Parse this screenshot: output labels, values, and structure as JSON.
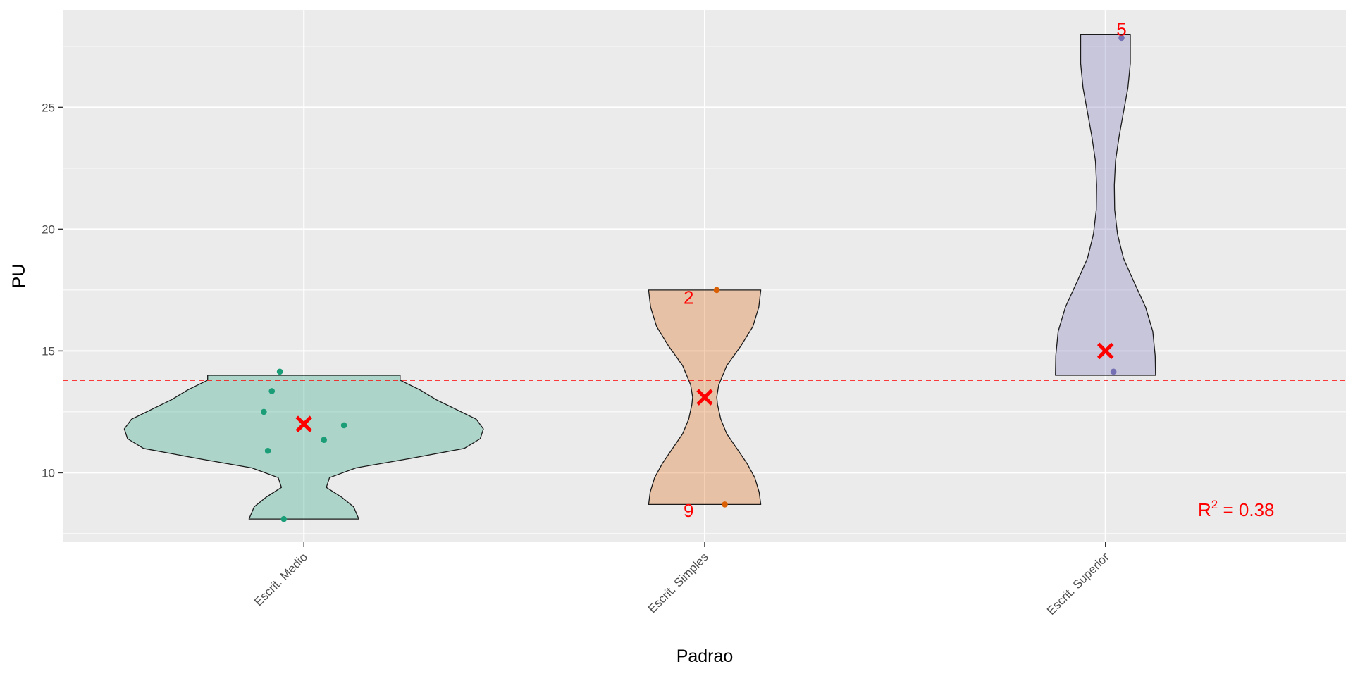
{
  "chart_data": {
    "type": "violin",
    "xlabel": "Padrao",
    "ylabel": "PU",
    "ylim": [
      7.15,
      29.0
    ],
    "yticks": [
      10,
      15,
      20,
      25
    ],
    "grid": true,
    "reference_line": {
      "y": 13.8,
      "color": "#ff0000",
      "style": "dashed"
    },
    "r2": {
      "prefix": "R",
      "sup": "2",
      "text": " = 0.38"
    },
    "mean_marker": {
      "symbol": "x",
      "color": "#ff0000"
    },
    "categories": [
      "Escrit. Medio",
      "Escrit. Simples",
      "Escrit. Superior"
    ],
    "groups": [
      {
        "category": "Escrit. Medio",
        "fill": "#1b9e77",
        "point_color": "#1b9e77",
        "ymin": 8.1,
        "ymax": 14.0,
        "mean": 12.0,
        "points": [
          {
            "dx": -0.05,
            "y": 8.1
          },
          {
            "dx": -0.09,
            "y": 10.9
          },
          {
            "dx": 0.05,
            "y": 11.35
          },
          {
            "dx": 0.1,
            "y": 11.95
          },
          {
            "dx": -0.1,
            "y": 12.5
          },
          {
            "dx": -0.08,
            "y": 13.35
          },
          {
            "dx": -0.06,
            "y": 14.15
          }
        ],
        "profile": [
          [
            8.1,
            0.137
          ],
          [
            8.6,
            0.124
          ],
          [
            9.0,
            0.094
          ],
          [
            9.4,
            0.056
          ],
          [
            9.8,
            0.064
          ],
          [
            10.2,
            0.13
          ],
          [
            10.6,
            0.27
          ],
          [
            11.0,
            0.4
          ],
          [
            11.4,
            0.44
          ],
          [
            11.8,
            0.448
          ],
          [
            12.2,
            0.43
          ],
          [
            12.6,
            0.38
          ],
          [
            13.0,
            0.33
          ],
          [
            13.4,
            0.29
          ],
          [
            13.8,
            0.24
          ],
          [
            14.0,
            0.24
          ]
        ],
        "labels": []
      },
      {
        "category": "Escrit. Simples",
        "fill": "#d95f02",
        "point_color": "#d95f02",
        "ymin": 8.7,
        "ymax": 17.5,
        "mean": 13.1,
        "points": [
          {
            "dx": 0.05,
            "y": 8.7
          },
          {
            "dx": 0.03,
            "y": 17.5
          }
        ],
        "profile": [
          [
            8.7,
            0.14
          ],
          [
            9.2,
            0.136
          ],
          [
            9.8,
            0.125
          ],
          [
            10.4,
            0.105
          ],
          [
            11.0,
            0.08
          ],
          [
            11.6,
            0.055
          ],
          [
            12.2,
            0.04
          ],
          [
            12.8,
            0.032
          ],
          [
            13.1,
            0.03
          ],
          [
            13.6,
            0.035
          ],
          [
            14.4,
            0.055
          ],
          [
            15.2,
            0.09
          ],
          [
            16.0,
            0.12
          ],
          [
            16.8,
            0.135
          ],
          [
            17.5,
            0.14
          ]
        ],
        "labels": [
          {
            "text": "9",
            "dx": -0.04,
            "y": 8.45
          },
          {
            "text": "2",
            "dx": -0.04,
            "y": 17.2
          }
        ]
      },
      {
        "category": "Escrit. Superior",
        "fill": "#7570b3",
        "point_color": "#7570b3",
        "ymin": 14.0,
        "ymax": 28.0,
        "mean": 15.0,
        "points": [
          {
            "dx": 0.02,
            "y": 14.15
          },
          {
            "dx": 0.04,
            "y": 27.85
          }
        ],
        "profile": [
          [
            14.0,
            0.125
          ],
          [
            14.8,
            0.124
          ],
          [
            15.8,
            0.118
          ],
          [
            16.8,
            0.1
          ],
          [
            17.8,
            0.072
          ],
          [
            18.8,
            0.045
          ],
          [
            19.8,
            0.03
          ],
          [
            20.8,
            0.023
          ],
          [
            21.8,
            0.022
          ],
          [
            22.8,
            0.025
          ],
          [
            23.8,
            0.034
          ],
          [
            24.8,
            0.045
          ],
          [
            25.8,
            0.056
          ],
          [
            26.8,
            0.062
          ],
          [
            28.0,
            0.062
          ]
        ],
        "labels": [
          {
            "text": "5",
            "dx": 0.04,
            "y": 28.2
          }
        ]
      }
    ]
  }
}
